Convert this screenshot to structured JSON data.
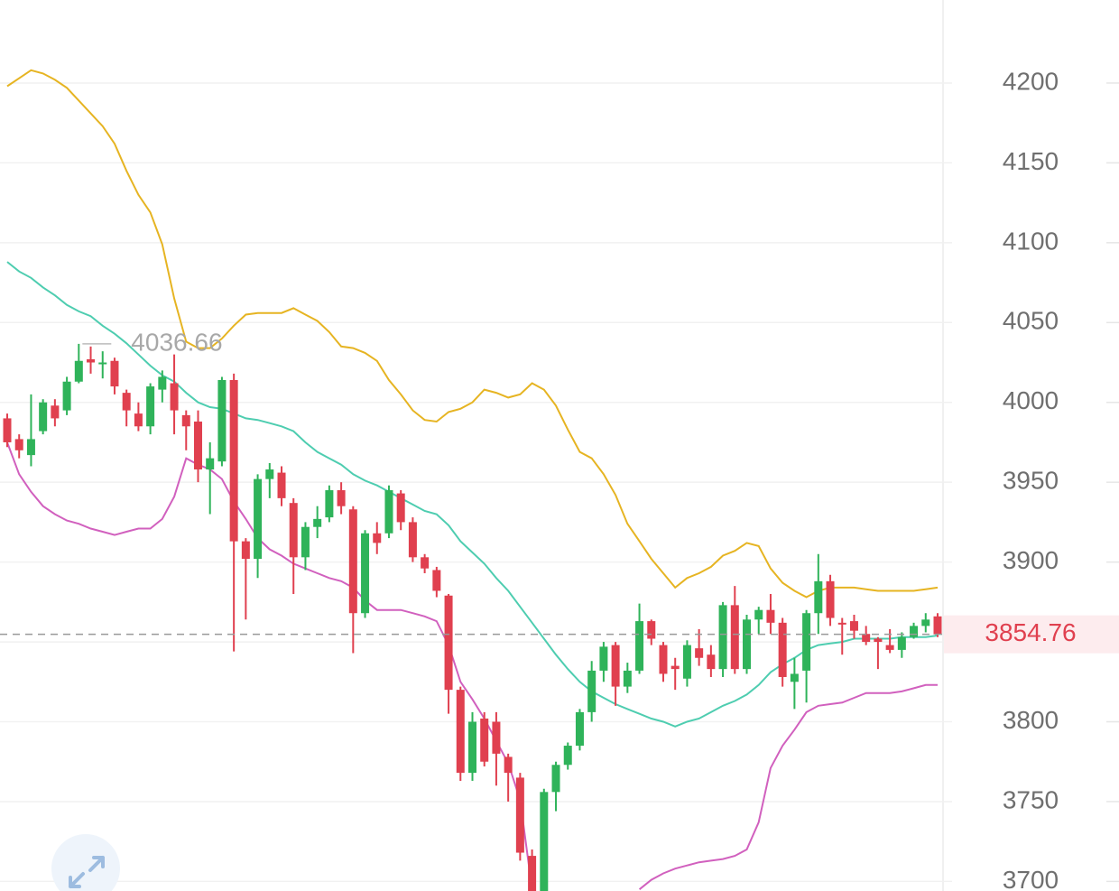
{
  "chart_data": {
    "type": "candlestick",
    "ylim": [
      3694,
      4252
    ],
    "yticks": [
      3700,
      3750,
      3800,
      3850,
      3900,
      3950,
      4000,
      4050,
      4100,
      4150,
      4200
    ],
    "grid": true,
    "up_color": "#2fb35a",
    "down_color": "#e0404f",
    "open": [
      3990,
      3977,
      3967,
      3982,
      3998,
      3995,
      4013,
      4027,
      4024,
      4026,
      4006,
      3993,
      3985,
      4008,
      4012,
      3992,
      3988,
      3958,
      3963,
      4014,
      3913,
      3902,
      3952,
      3956,
      3937,
      3903,
      3922,
      3928,
      3945,
      3933,
      3868,
      3918,
      3918,
      3943,
      3925,
      3903,
      3895,
      3879,
      3820,
      3768,
      3802,
      3800,
      3778,
      3765,
      3716,
      3690,
      3756,
      3773,
      3785,
      3806,
      3832,
      3848,
      3822,
      3832,
      3863,
      3848,
      3835,
      3827,
      3846,
      3842,
      3833,
      3873,
      3833,
      3864,
      3870,
      3862,
      3825,
      3832,
      3868,
      3888,
      3862,
      3863,
      3855,
      3852,
      3848,
      3845,
      3853,
      3860,
      3866
    ],
    "high": [
      3993,
      3980,
      4005,
      4002,
      4002,
      4016,
      4036.66,
      4035,
      4032,
      4028,
      4008,
      4000,
      4012,
      4020,
      4030,
      3995,
      3995,
      3975,
      4016,
      4018,
      3915,
      3955,
      3962,
      3960,
      3940,
      3925,
      3935,
      3948,
      3950,
      3935,
      3920,
      3925,
      3948,
      3945,
      3928,
      3905,
      3897,
      3880,
      3822,
      3806,
      3806,
      3806,
      3780,
      3768,
      3720,
      3758,
      3775,
      3787,
      3808,
      3838,
      3850,
      3850,
      3837,
      3874,
      3864,
      3850,
      3840,
      3851,
      3858,
      3848,
      3875,
      3885,
      3867,
      3872,
      3880,
      3865,
      3840,
      3870,
      3905,
      3892,
      3865,
      3867,
      3860,
      3853,
      3858,
      3856,
      3862,
      3868,
      3868
    ],
    "low": [
      3972,
      3965,
      3960,
      3980,
      3985,
      3992,
      4012,
      4018,
      4015,
      4005,
      3985,
      3982,
      3980,
      4000,
      3980,
      3970,
      3950,
      3930,
      3960,
      3844,
      3864,
      3890,
      3940,
      3935,
      3880,
      3895,
      3915,
      3925,
      3930,
      3843,
      3865,
      3905,
      3915,
      3920,
      3900,
      3893,
      3878,
      3805,
      3763,
      3763,
      3772,
      3760,
      3750,
      3713,
      3690,
      3690,
      3744,
      3770,
      3782,
      3800,
      3825,
      3810,
      3818,
      3830,
      3848,
      3825,
      3820,
      3822,
      3835,
      3828,
      3828,
      3830,
      3830,
      3855,
      3855,
      3822,
      3808,
      3812,
      3855,
      3860,
      3842,
      3852,
      3848,
      3833,
      3843,
      3840,
      3852,
      3856,
      3853
    ],
    "close": [
      3975,
      3970,
      3977,
      4000,
      3990,
      4013,
      4026,
      4025,
      4025,
      4010,
      3995,
      3985,
      4010,
      4016,
      3995,
      3985,
      3958,
      3965,
      4014,
      3913,
      3902,
      3952,
      3958,
      3940,
      3903,
      3922,
      3927,
      3945,
      3935,
      3868,
      3918,
      3912,
      3945,
      3925,
      3903,
      3896,
      3882,
      3820,
      3768,
      3800,
      3775,
      3780,
      3768,
      3718,
      3690,
      3756,
      3773,
      3785,
      3806,
      3832,
      3847,
      3822,
      3832,
      3863,
      3852,
      3830,
      3833,
      3848,
      3840,
      3833,
      3873,
      3833,
      3864,
      3870,
      3862,
      3828,
      3830,
      3868,
      3888,
      3865,
      3861,
      3857,
      3850,
      3850,
      3845,
      3853,
      3860,
      3864,
      3854.76
    ],
    "series": [
      {
        "color": "#e6b422",
        "values": [
          4198,
          4203,
          4208,
          4206,
          4202,
          4197,
          4189,
          4181,
          4173,
          4162,
          4145,
          4130,
          4119,
          4099,
          4065,
          4038,
          4034,
          4034,
          4040,
          4048,
          4055,
          4056,
          4056,
          4056,
          4059,
          4055,
          4051,
          4044,
          4035,
          4034,
          4031,
          4026,
          4014,
          4005,
          3995,
          3989,
          3988,
          3994,
          3996,
          4000,
          4008,
          4006,
          4003,
          4005,
          4012,
          4008,
          3998,
          3983,
          3969,
          3965,
          3955,
          3942,
          3924,
          3913,
          3902,
          3893,
          3884,
          3890,
          3893,
          3897,
          3904,
          3907,
          3912,
          3910,
          3896,
          3887,
          3882,
          3878,
          3882,
          3884,
          3884,
          3884,
          3883,
          3882,
          3882,
          3882,
          3882,
          3883,
          3884
        ]
      },
      {
        "color": "#4ecdb0",
        "values": [
          4088,
          4082,
          4078,
          4072,
          4067,
          4061,
          4057,
          4054,
          4048,
          4043,
          4037,
          4030,
          4023,
          4017,
          4013,
          4006,
          4000,
          3997,
          3996,
          3993,
          3990,
          3989,
          3987,
          3985,
          3982,
          3975,
          3969,
          3965,
          3961,
          3955,
          3951,
          3948,
          3944,
          3940,
          3936,
          3932,
          3930,
          3923,
          3913,
          3906,
          3899,
          3890,
          3882,
          3872,
          3862,
          3852,
          3842,
          3833,
          3825,
          3819,
          3815,
          3811,
          3808,
          3805,
          3802,
          3800,
          3797,
          3800,
          3802,
          3806,
          3810,
          3813,
          3817,
          3823,
          3831,
          3836,
          3840,
          3845,
          3848,
          3849,
          3850,
          3852,
          3852,
          3852,
          3852,
          3853,
          3853,
          3853,
          3854
        ]
      },
      {
        "color": "#d160be",
        "values": [
          3975,
          3955,
          3944,
          3935,
          3930,
          3926,
          3924,
          3921,
          3919,
          3917,
          3919,
          3921,
          3921,
          3927,
          3941,
          3965,
          3961,
          3958,
          3952,
          3938,
          3927,
          3915,
          3908,
          3904,
          3899,
          3896,
          3893,
          3890,
          3888,
          3884,
          3876,
          3870,
          3870,
          3870,
          3868,
          3866,
          3863,
          3848,
          3825,
          3814,
          3802,
          3788,
          3774,
          3751,
          3695,
          null,
          null,
          null,
          null,
          null,
          null,
          null,
          null,
          3695,
          3701,
          3705,
          3708,
          3710,
          3712,
          3713,
          3714,
          3716,
          3720,
          3737,
          3771,
          3785,
          3795,
          3806,
          3810,
          3811,
          3812,
          3815,
          3818,
          3818,
          3818,
          3819,
          3821,
          3823,
          3823
        ]
      }
    ],
    "max_marker": 4036.66,
    "last_price": 3854.76,
    "last_price_color": "#e0404f"
  }
}
